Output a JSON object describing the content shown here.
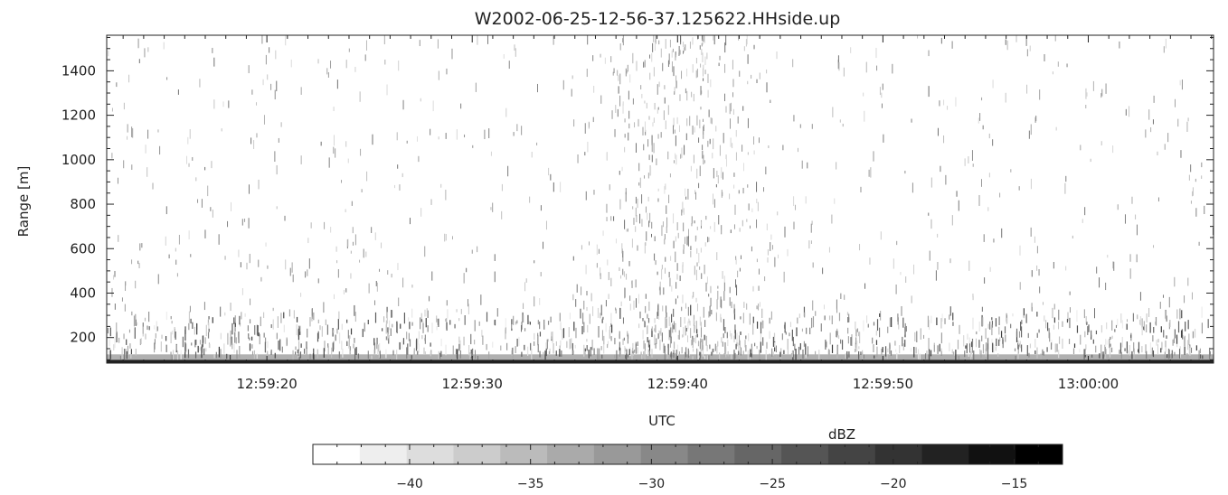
{
  "chart_data": {
    "type": "heatmap",
    "title": "W2002-06-25-12-56-37.125622.HHside.up",
    "xlabel": "UTC",
    "ylabel": "Range [m]",
    "x_tick_labels": [
      "12:59:20",
      "12:59:30",
      "12:59:40",
      "12:59:50",
      "13:00:00"
    ],
    "x_tick_seconds": [
      20,
      30,
      40,
      50,
      60
    ],
    "xlim_seconds_after_12_59_00": [
      12.2,
      66.1
    ],
    "y_ticks": [
      200,
      400,
      600,
      800,
      1000,
      1200,
      1400
    ],
    "ylim": [
      85,
      1560
    ],
    "grid": false,
    "colormap": "grayscale, white to black",
    "colorbar": {
      "label": "dBZ",
      "ticks": [
        -40,
        -35,
        -30,
        -25,
        -20,
        -15
      ],
      "range": [
        -44,
        -13
      ],
      "levels": 16,
      "low_color": "#ffffff",
      "high_color": "#000000"
    },
    "description_of_field": {
      "near_surface_layer_range_m": [
        85,
        100
      ],
      "near_surface_dbz": -17,
      "dense_echo_layer_range_m": [
        100,
        300
      ],
      "sparse_echo_max_range_m": 1560,
      "enhanced_echo_time_around": "12:59:40"
    }
  }
}
